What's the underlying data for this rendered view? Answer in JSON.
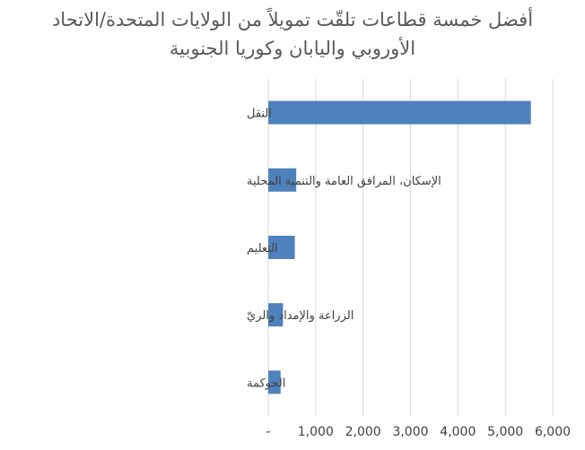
{
  "chart_data": {
    "type": "bar",
    "orientation": "horizontal",
    "title_lines": [
      "أفضل خمسة قطاعات تلقّت تمويلاً من الولايات المتحدة/الاتحاد",
      "الأوروبي واليابان وكوريا الجنوبية"
    ],
    "categories": [
      "النقل",
      "الإسكان، المرافق العامة والتنمية المحلية",
      "التعليم",
      "الزراعة والإمداد والريّ",
      "الحوكمة"
    ],
    "values": [
      5540,
      590,
      560,
      310,
      260
    ],
    "xlim": [
      0,
      6000
    ],
    "x_ticks": [
      0,
      1000,
      2000,
      3000,
      4000,
      5000,
      6000
    ],
    "x_tick_labels": [
      "-",
      "1,000",
      "2,000",
      "3,000",
      "4,000",
      "5,000",
      "6,000"
    ],
    "gridlines": "vertical",
    "bar_color": "#4f81bd",
    "grid_color": "#d9d9d9",
    "legend": "none"
  }
}
